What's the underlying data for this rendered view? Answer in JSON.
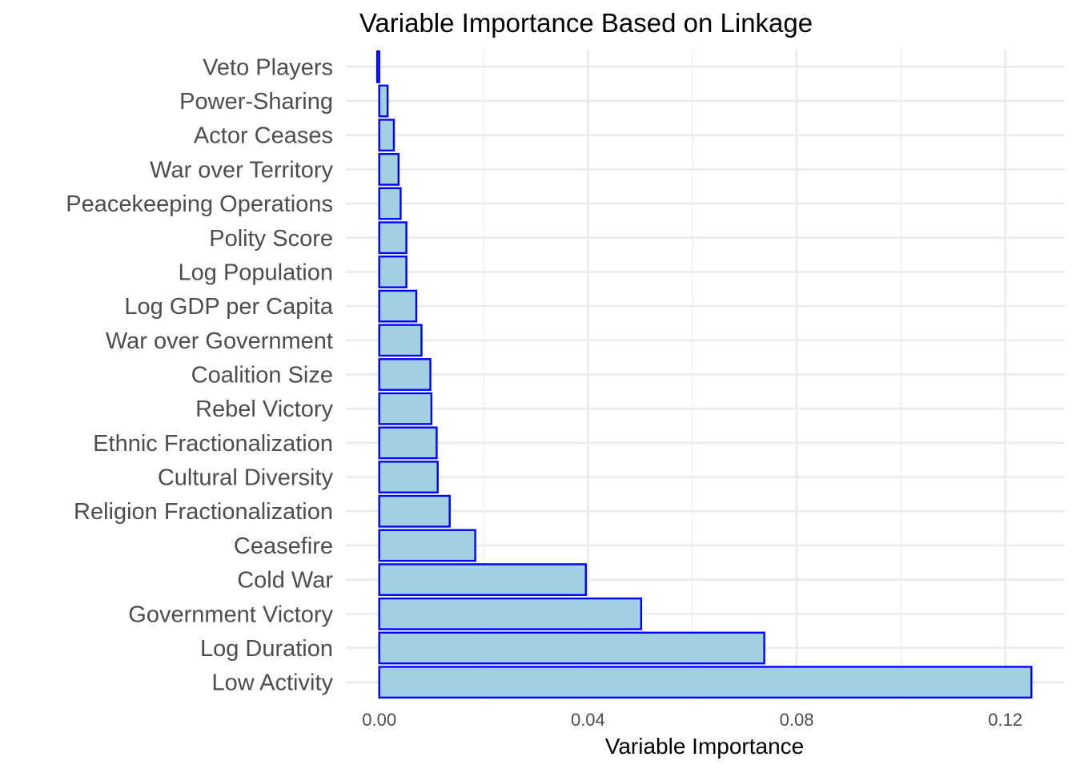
{
  "chart_data": {
    "type": "bar",
    "orientation": "horizontal",
    "title": "Variable Importance Based on Linkage",
    "xlabel": "Variable Importance",
    "ylabel": "",
    "categories": [
      "Low Activity",
      "Log Duration",
      "Government Victory",
      "Cold War",
      "Ceasefire",
      "Religion Fractionalization",
      "Cultural Diversity",
      "Ethnic Fractionalization",
      "Rebel Victory",
      "Coalition Size",
      "War over Government",
      "Log GDP per Capita",
      "Log Population",
      "Polity Score",
      "Peacekeeping Operations",
      "War over Territory",
      "Actor Ceases",
      "Power-Sharing",
      "Veto Players"
    ],
    "values": [
      0.125,
      0.0738,
      0.0502,
      0.0396,
      0.0184,
      0.0135,
      0.0112,
      0.011,
      0.01,
      0.0098,
      0.0081,
      0.0071,
      0.0052,
      0.0052,
      0.0041,
      0.0037,
      0.0028,
      0.0016,
      -0.0004
    ],
    "xlim": [
      -0.0064,
      0.1314
    ],
    "x_ticks": [
      0.0,
      0.04,
      0.08,
      0.12
    ],
    "x_tick_labels": [
      "0.00",
      "0.04",
      "0.08",
      "0.12"
    ],
    "grid": true,
    "legend": "none",
    "colors": {
      "bar_fill": "#a1d0e2",
      "bar_outline": "#0000ff",
      "grid": "#ebebeb",
      "text": "#4d4d4d",
      "title": "#000000",
      "background": "#ffffff"
    }
  }
}
